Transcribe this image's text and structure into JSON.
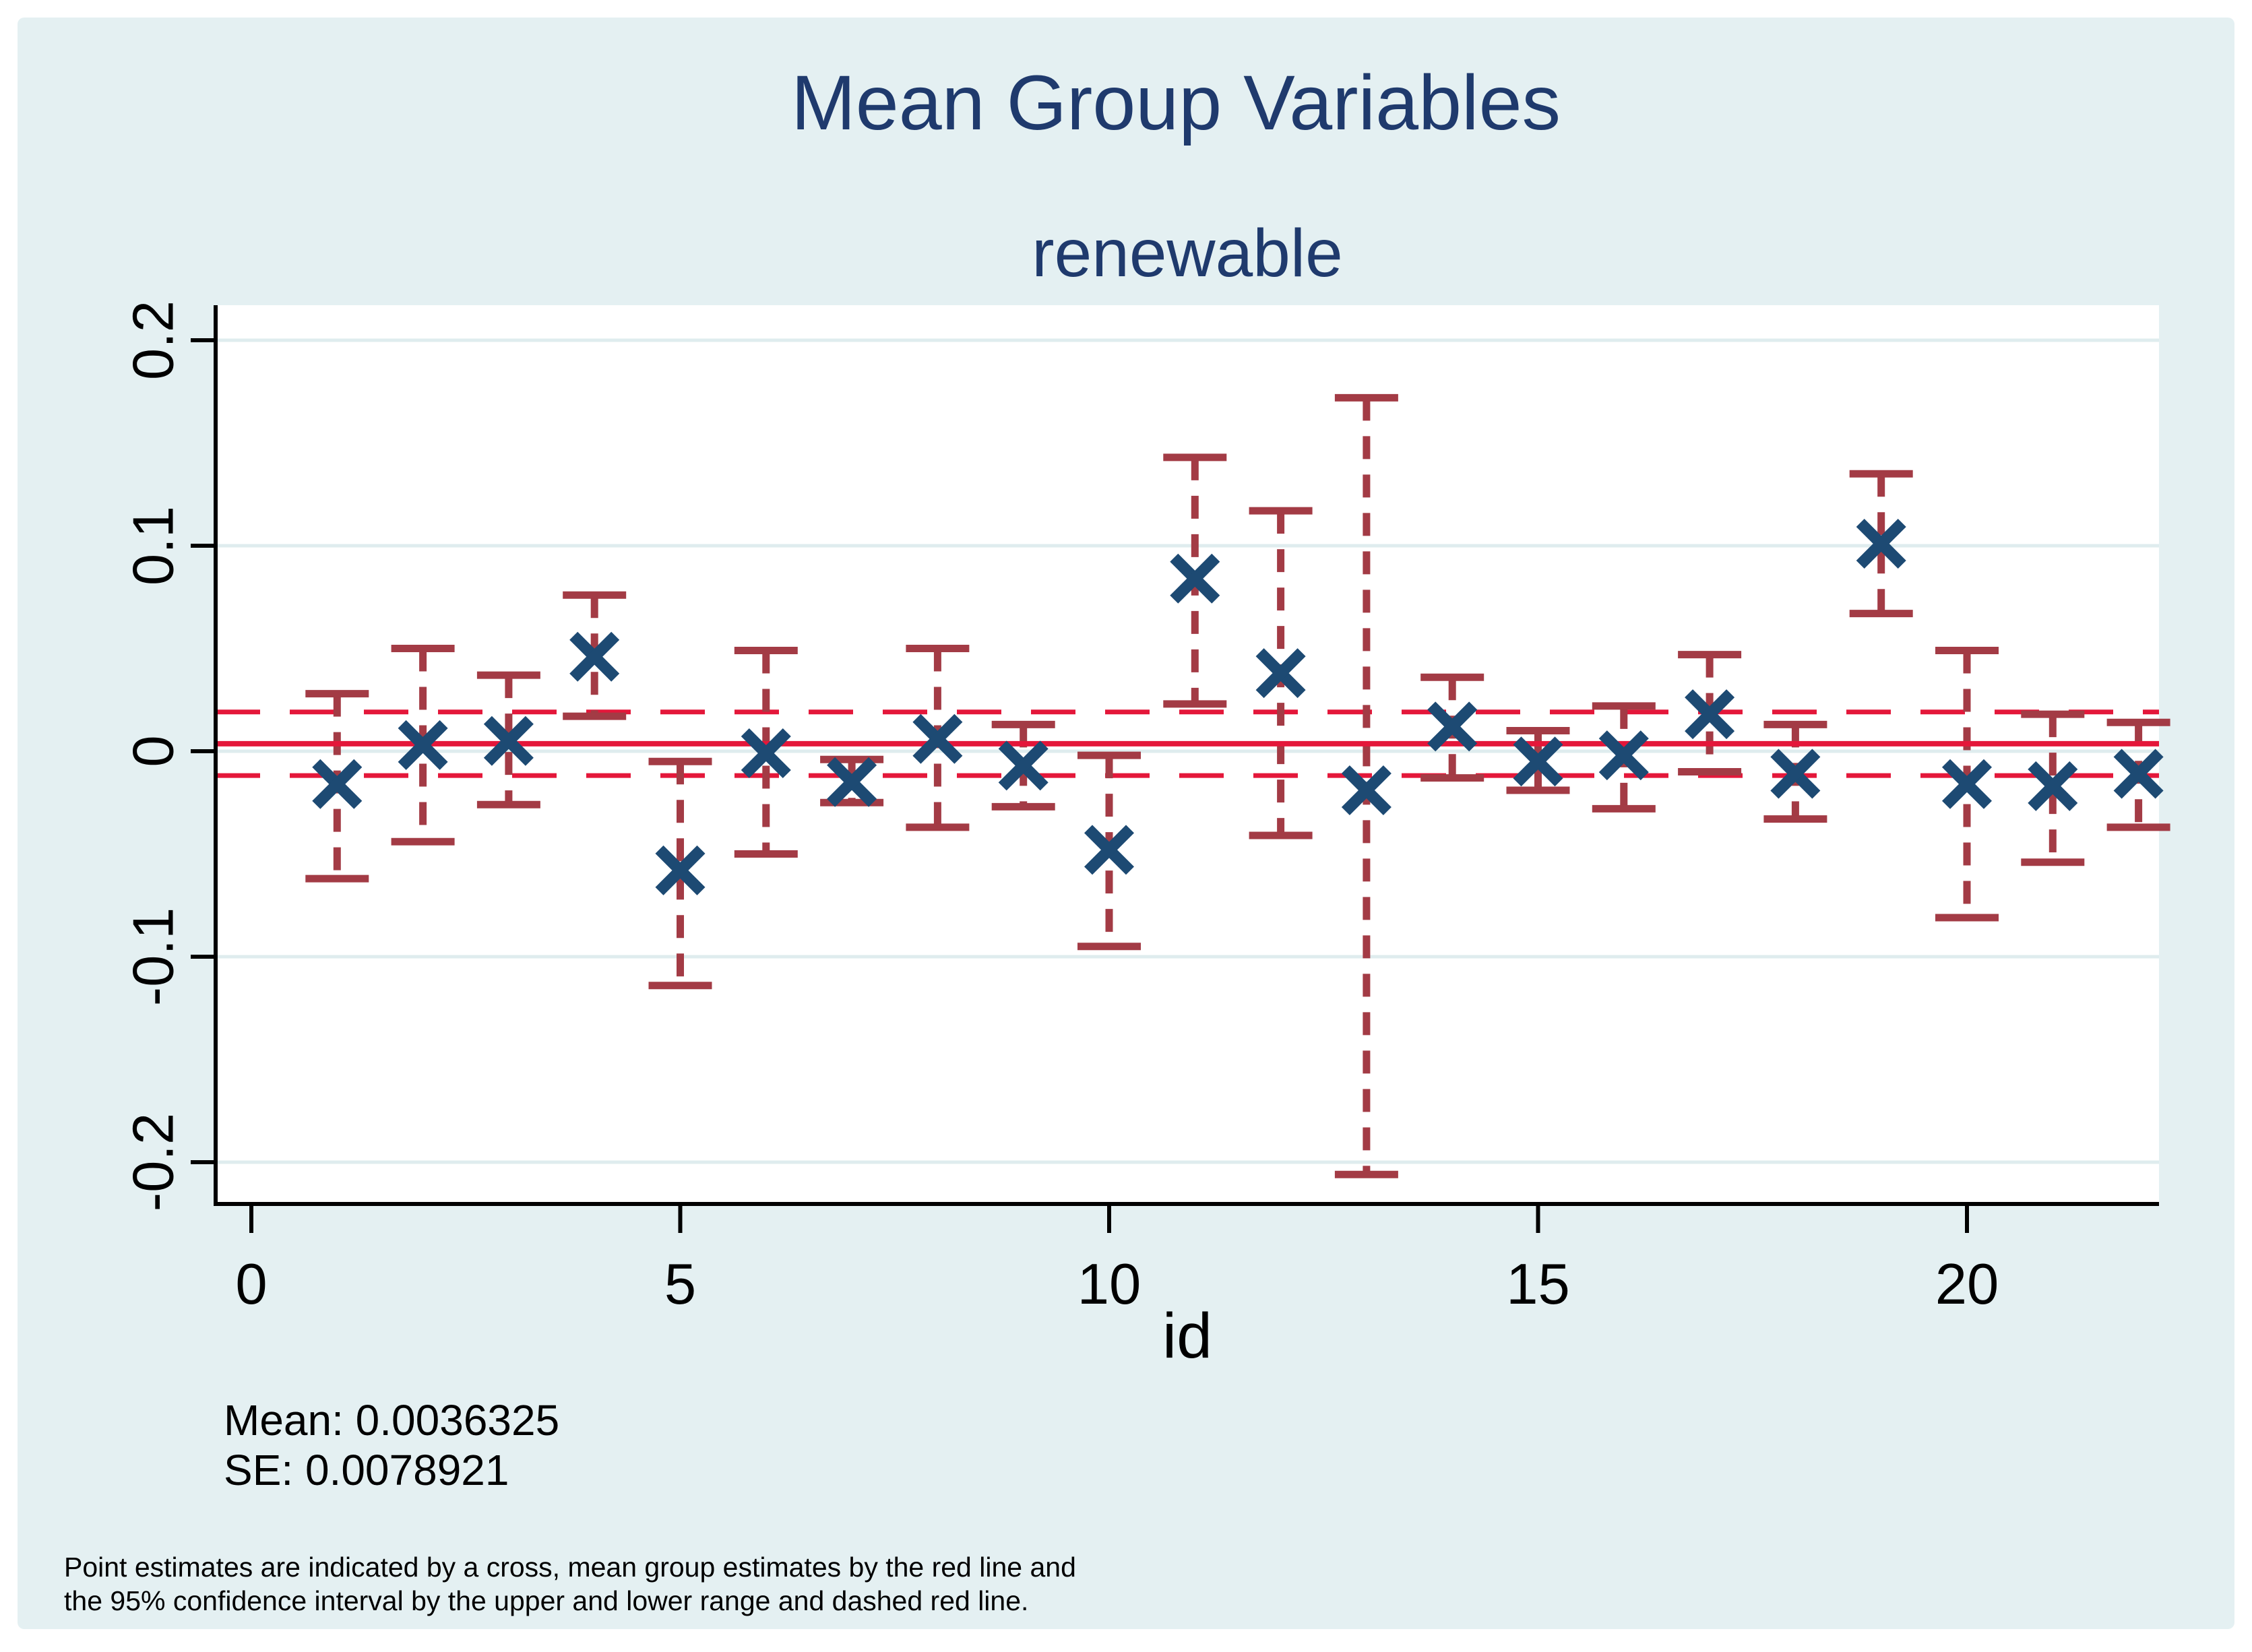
{
  "figure": {
    "title": "Mean Group Variables",
    "subtitle": "renewable",
    "stats": {
      "mean_label": "Mean: 0.0036325",
      "se_label": "SE: 0.0078921"
    },
    "footnote_line1": "Point estimates are indicated by a cross, mean group estimates by the red line and",
    "footnote_line2": "the 95% confidence interval by the upper and lower range and dashed red line.",
    "colors": {
      "title_navy": "#1f3a6d",
      "panel_bg": "#e4f0f2",
      "plot_bg": "#ffffff",
      "gridline": "#dfecee",
      "axis_black": "#000000",
      "mean_line_red": "#e4173a",
      "ci_band_red": "#e4173a",
      "errorbar_maroon": "#a33b45",
      "cross_navy": "#1d4a73"
    }
  },
  "chart_data": {
    "type": "scatter",
    "title": "Mean Group Variables",
    "subtitle": "renewable",
    "xlabel": "id",
    "ylabel": "",
    "x_ticks": [
      0,
      5,
      10,
      15,
      20
    ],
    "x_tick_labels": [
      "0",
      "5",
      "10",
      "15",
      "20"
    ],
    "y_ticks": [
      0.2,
      0.1,
      0,
      -0.1,
      -0.2
    ],
    "y_tick_labels": [
      "0.2",
      "0.1",
      "0",
      "-0.1",
      "-0.2"
    ],
    "xlim": [
      -0.45,
      22.3
    ],
    "ylim": [
      -0.22,
      0.217
    ],
    "grid": true,
    "mean": 0.0036325,
    "se": 0.0078921,
    "mean_line_value": 0.0036325,
    "ci_band_upper": 0.0191,
    "ci_band_lower": -0.0118,
    "series_note": "Point estimates (cross) with 95% confidence interval whiskers per id",
    "points": [
      {
        "id": 1,
        "est": -0.016,
        "lo": -0.062,
        "hi": 0.028
      },
      {
        "id": 2,
        "est": 0.003,
        "lo": -0.044,
        "hi": 0.05
      },
      {
        "id": 3,
        "est": 0.005,
        "lo": -0.026,
        "hi": 0.037
      },
      {
        "id": 4,
        "est": 0.046,
        "lo": 0.017,
        "hi": 0.076
      },
      {
        "id": 5,
        "est": -0.058,
        "lo": -0.114,
        "hi": -0.005
      },
      {
        "id": 6,
        "est": -0.001,
        "lo": -0.05,
        "hi": 0.049
      },
      {
        "id": 7,
        "est": -0.015,
        "lo": -0.025,
        "hi": -0.004
      },
      {
        "id": 8,
        "est": 0.006,
        "lo": -0.037,
        "hi": 0.05
      },
      {
        "id": 9,
        "est": -0.007,
        "lo": -0.027,
        "hi": 0.013
      },
      {
        "id": 10,
        "est": -0.048,
        "lo": -0.095,
        "hi": -0.002
      },
      {
        "id": 11,
        "est": 0.084,
        "lo": 0.023,
        "hi": 0.143
      },
      {
        "id": 12,
        "est": 0.038,
        "lo": -0.041,
        "hi": 0.117
      },
      {
        "id": 13,
        "est": -0.019,
        "lo": -0.206,
        "hi": 0.172
      },
      {
        "id": 14,
        "est": 0.012,
        "lo": -0.013,
        "hi": 0.036
      },
      {
        "id": 15,
        "est": -0.005,
        "lo": -0.019,
        "hi": 0.01
      },
      {
        "id": 16,
        "est": -0.002,
        "lo": -0.028,
        "hi": 0.022
      },
      {
        "id": 17,
        "est": 0.018,
        "lo": -0.01,
        "hi": 0.047
      },
      {
        "id": 18,
        "est": -0.011,
        "lo": -0.033,
        "hi": 0.013
      },
      {
        "id": 19,
        "est": 0.101,
        "lo": 0.067,
        "hi": 0.135
      },
      {
        "id": 20,
        "est": -0.016,
        "lo": -0.081,
        "hi": 0.049
      },
      {
        "id": 21,
        "est": -0.017,
        "lo": -0.054,
        "hi": 0.018
      },
      {
        "id": 22,
        "est": -0.011,
        "lo": -0.037,
        "hi": 0.014
      }
    ],
    "legend_position": "none"
  }
}
